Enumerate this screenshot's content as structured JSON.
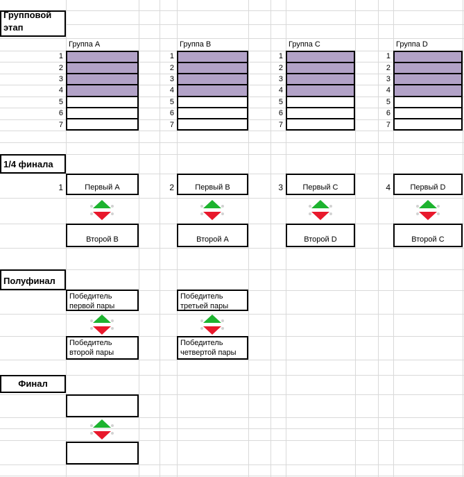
{
  "colors": {
    "group_fill": "#b2a2c7",
    "arrow_green": "#1db32f",
    "arrow_red": "#e8192c",
    "gridline": "#d9d9d9",
    "border": "#000000",
    "dot": "#d2d2d2"
  },
  "icons": {
    "qualify_arrows": "green-up-and-red-down-triangles"
  },
  "sections": {
    "group_stage": {
      "title_line1": "Групповой",
      "title_line2": "этап",
      "row_numbers": [
        "1",
        "2",
        "3",
        "4",
        "5",
        "6",
        "7"
      ],
      "groups": [
        {
          "label": "Группа A"
        },
        {
          "label": "Группа B"
        },
        {
          "label": "Группа C"
        },
        {
          "label": "Группа D"
        }
      ]
    },
    "quarterfinal": {
      "title": "1/4 финала",
      "pairs": [
        {
          "number": "1",
          "top": "Первый A",
          "bottom": "Второй B"
        },
        {
          "number": "2",
          "top": "Первый B",
          "bottom": "Второй A"
        },
        {
          "number": "3",
          "top": "Первый C",
          "bottom": "Второй D"
        },
        {
          "number": "4",
          "top": "Первый D",
          "bottom": "Второй C"
        }
      ]
    },
    "semifinal": {
      "title": "Полуфинал",
      "pairs": [
        {
          "top_line1": "Победитель",
          "top_line2": "первой пары",
          "bottom_line1": "Победитель",
          "bottom_line2": "второй пары"
        },
        {
          "top_line1": "Победитель",
          "top_line2": "третьей пары",
          "bottom_line1": "Победитель",
          "bottom_line2": "четвертой пары"
        }
      ]
    },
    "final": {
      "title": "Финал",
      "top": "",
      "bottom": ""
    }
  }
}
